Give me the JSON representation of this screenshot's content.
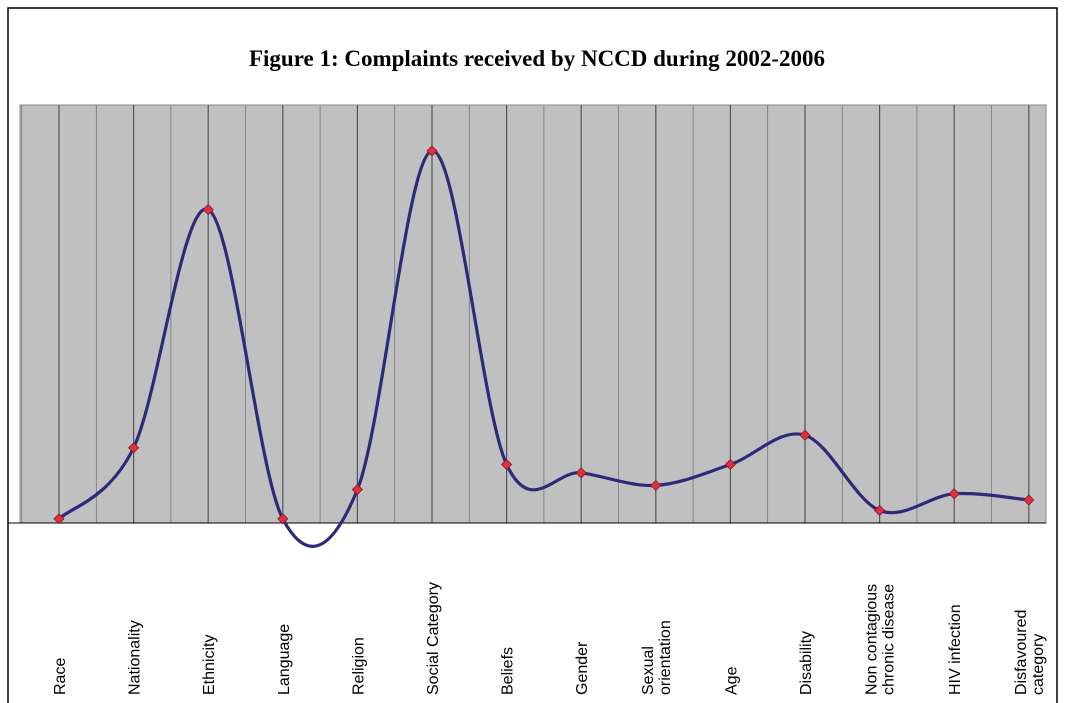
{
  "chart_data": {
    "type": "line",
    "title": "Figure 1: Complaints received by NCCD during 2002-2006",
    "categories": [
      "Race",
      "Nationality",
      "Ethnicity",
      "Language",
      "Religion",
      "Social Category",
      "Beliefs",
      "Gender",
      "Sexual\norientation",
      "Age",
      "Disability",
      "Non contagious\nchronic disease",
      "HIV infection",
      "Disfavoured\ncategory"
    ],
    "values": [
      1,
      18,
      75,
      1,
      8,
      89,
      14,
      12,
      9,
      14,
      21,
      3,
      7,
      5.5
    ],
    "ylim": [
      0,
      100
    ],
    "color": "#2e2a7a",
    "marker_color": "#e0303a",
    "grid": true
  }
}
